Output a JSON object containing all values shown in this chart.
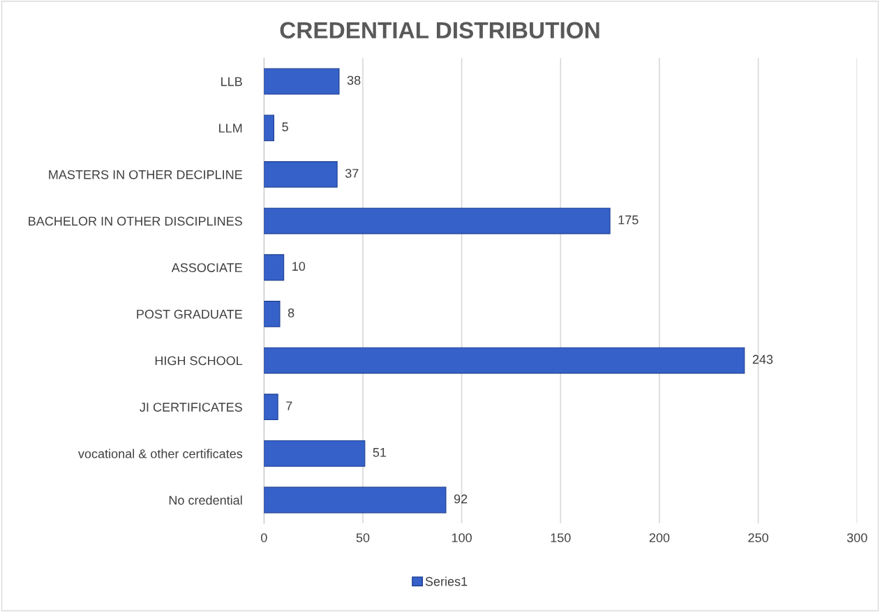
{
  "chart_data": {
    "type": "bar",
    "orientation": "horizontal",
    "title": "CREDENTIAL DISTRIBUTION",
    "categories": [
      "LLB",
      "LLM",
      "MASTERS IN OTHER DECIPLINE",
      "BACHELOR IN OTHER DISCIPLINES",
      "ASSOCIATE",
      "POST GRADUATE",
      "HIGH SCHOOL",
      "JI CERTIFICATES",
      "vocational & other certificates",
      "No credential"
    ],
    "series": [
      {
        "name": "Series1",
        "color": "#3561c9",
        "values": [
          38,
          5,
          37,
          175,
          10,
          8,
          243,
          7,
          51,
          92
        ]
      }
    ],
    "xlim": [
      0,
      300
    ],
    "xticks": [
      0,
      50,
      100,
      150,
      200,
      250,
      300
    ],
    "grid": "x",
    "legend": "bottom",
    "data_labels": true
  }
}
